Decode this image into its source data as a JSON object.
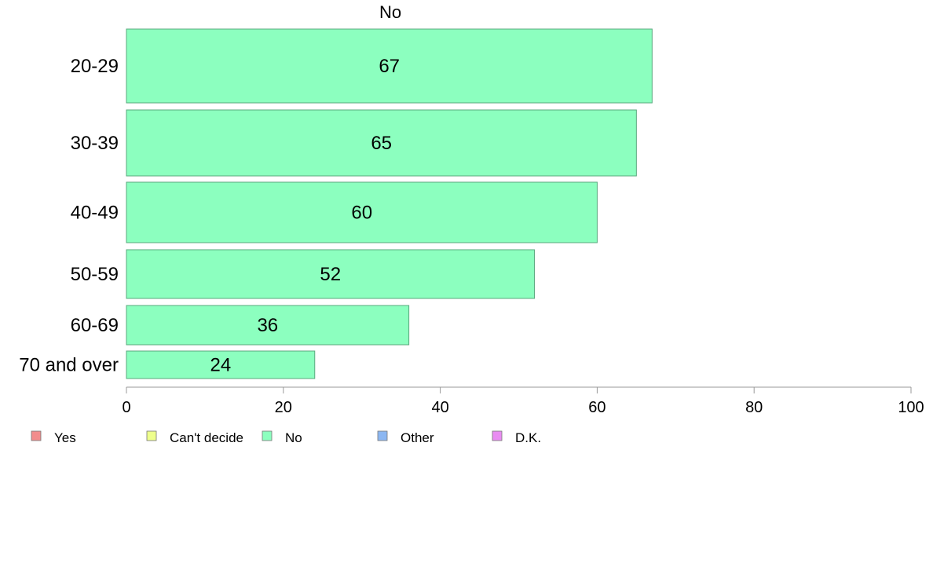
{
  "chart_data": {
    "type": "bar",
    "orientation": "horizontal",
    "title": "No",
    "categories": [
      "20-29",
      "30-39",
      "40-49",
      "50-59",
      "60-69",
      "70 and over"
    ],
    "values": [
      67,
      65,
      60,
      52,
      36,
      24
    ],
    "xlim": [
      0,
      100
    ],
    "xticks": [
      0,
      20,
      40,
      60,
      80,
      100
    ],
    "bar_color": "#8CFFBF",
    "bar_edge_color": "#5aa87e",
    "grid": false,
    "legend_position": "bottom-left",
    "legend": [
      {
        "label": "Yes",
        "color": "#F28D8D"
      },
      {
        "label": "Can't decide",
        "color": "#EEFF8C"
      },
      {
        "label": "No",
        "color": "#8CFFBF"
      },
      {
        "label": "Other",
        "color": "#8CB7F2"
      },
      {
        "label": "D.K.",
        "color": "#E98CF2"
      }
    ]
  }
}
